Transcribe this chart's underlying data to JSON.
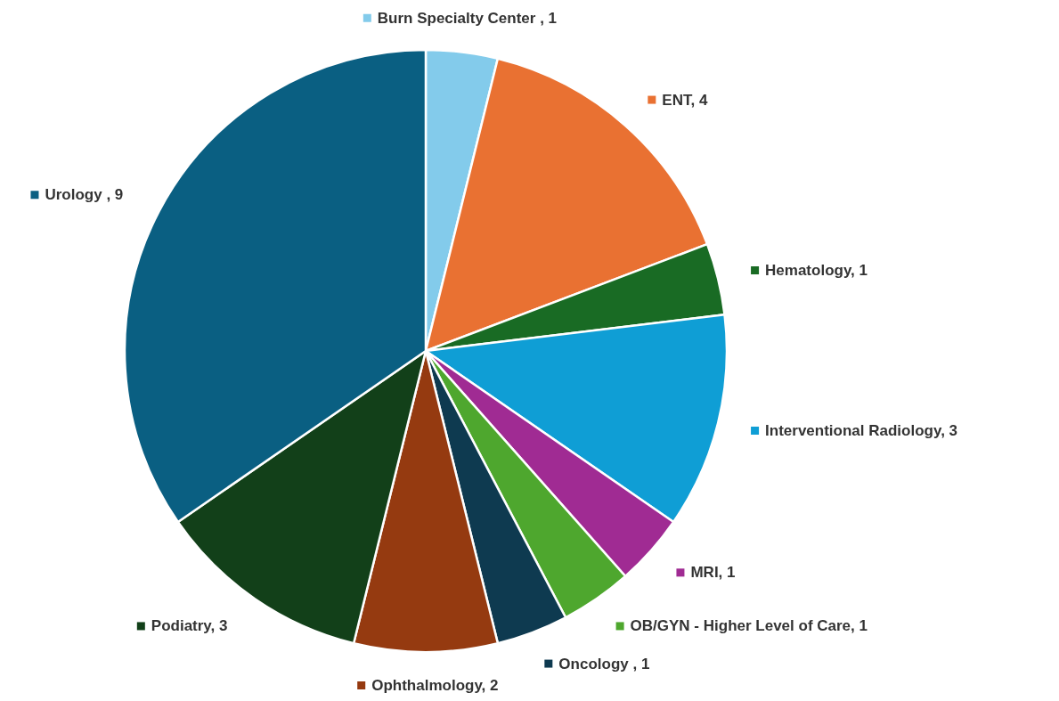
{
  "chart_data": {
    "type": "pie",
    "categories": [
      "Burn Specialty Center ",
      "ENT",
      "Hematology",
      "Interventional Radiology",
      "MRI",
      "OB/GYN - Higher Level of Care",
      "Oncology ",
      "Ophthalmology",
      "Podiatry",
      "Urology "
    ],
    "values": [
      1,
      4,
      1,
      3,
      1,
      1,
      1,
      2,
      3,
      9
    ],
    "colors": [
      "#83cbeb",
      "#e97132",
      "#196b24",
      "#0f9ed5",
      "#a02b93",
      "#4ea72e",
      "#0e3a50",
      "#953a10",
      "#124019",
      "#0a5f82"
    ],
    "value_labels": [
      ", 1",
      ", 4",
      ", 1",
      ", 3",
      ", 1",
      ", 1",
      ", 1",
      ", 2",
      ", 3",
      ", 9"
    ],
    "legend": "right"
  }
}
